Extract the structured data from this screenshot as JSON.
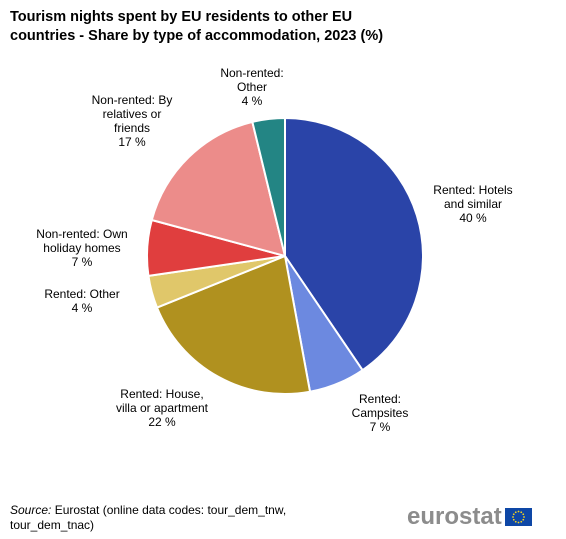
{
  "title": {
    "line1": "Tourism nights spent by EU residents to other EU",
    "line2": "countries - Share by type of accommodation, 2023 (%)"
  },
  "chart_data": {
    "type": "pie",
    "title": "Tourism nights spent by EU residents to other EU countries - Share by type of accommodation, 2023 (%)",
    "start_angle_deg": 0,
    "direction": "clockwise",
    "slices": [
      {
        "label_lines": [
          "Rented: Hotels",
          "and similar"
        ],
        "value_text": "40 %",
        "value": 40.5,
        "color": "#2a44a8"
      },
      {
        "label_lines": [
          "Rented:",
          "Campsites"
        ],
        "value_text": "7 %",
        "value": 6.6,
        "color": "#6c89e0"
      },
      {
        "label_lines": [
          "Rented: House,",
          "villa or apartment"
        ],
        "value_text": "22 %",
        "value": 21.8,
        "color": "#b0911f"
      },
      {
        "label_lines": [
          "Rented: Other"
        ],
        "value_text": "4 %",
        "value": 3.8,
        "color": "#e0c76a"
      },
      {
        "label_lines": [
          "Non-rented: Own",
          "holiday homes"
        ],
        "value_text": "7 %",
        "value": 6.5,
        "color": "#e03e3e"
      },
      {
        "label_lines": [
          "Non-rented: By",
          "relatives or",
          "friends"
        ],
        "value_text": "17 %",
        "value": 17.0,
        "color": "#ec8c8a"
      },
      {
        "label_lines": [
          "Non-rented:",
          "Other"
        ],
        "value_text": "4 %",
        "value": 3.8,
        "color": "#238584"
      }
    ]
  },
  "source": {
    "prefix": "Source:",
    "text": " Eurostat (online data codes: tour_dem_tnw,",
    "line2": "tour_dem_tnac)"
  },
  "logo": {
    "text": "eurostat"
  }
}
